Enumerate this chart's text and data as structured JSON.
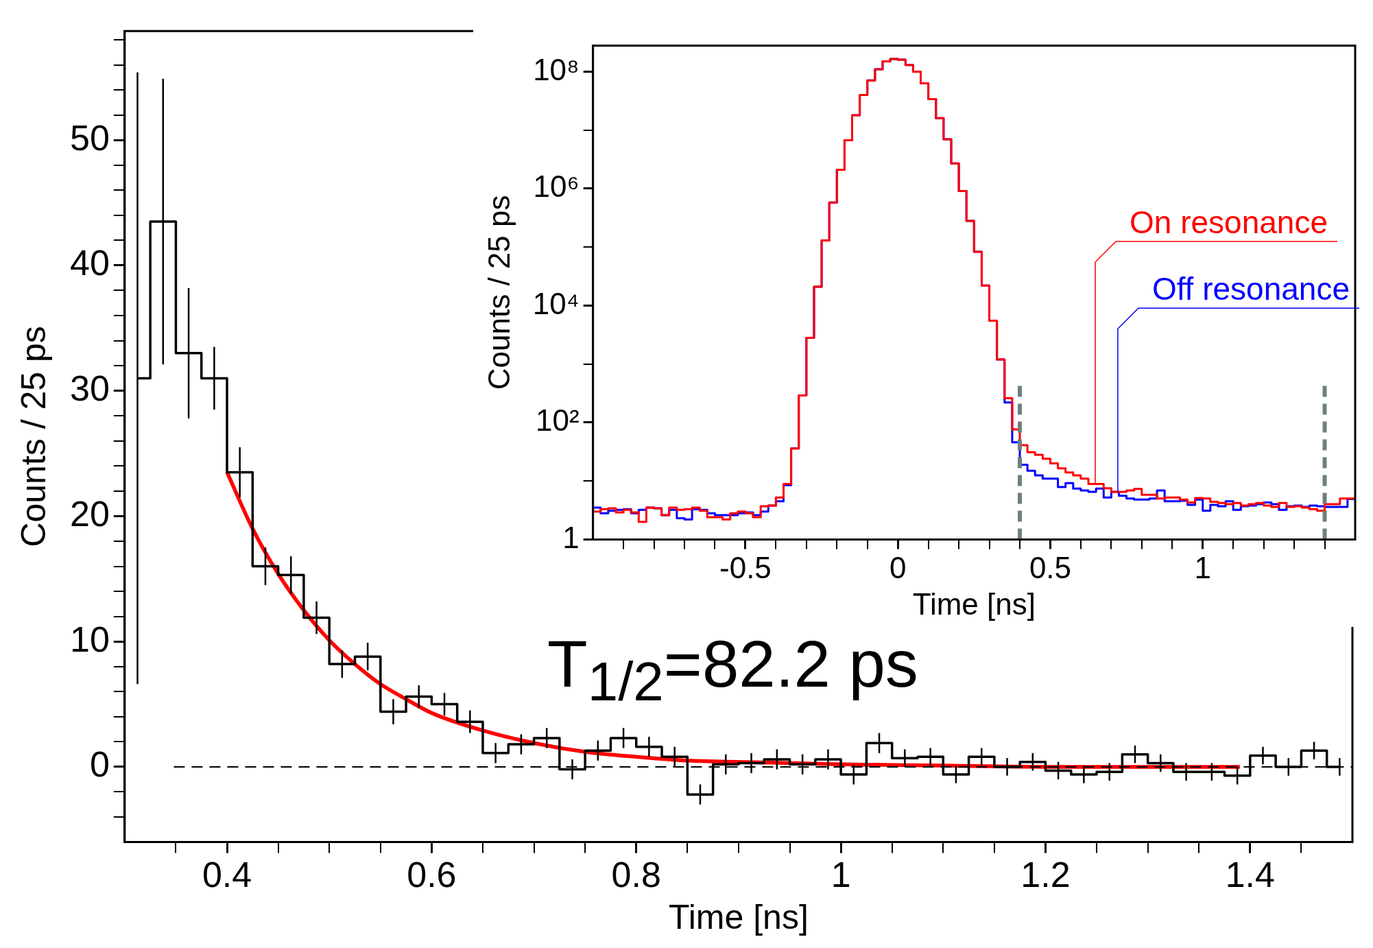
{
  "chart_data": [
    {
      "type": "step",
      "xlabel": "Time [ns]",
      "ylabel": "Counts / 25 ps",
      "marker": "none",
      "xlim": [
        0.3,
        1.5
      ],
      "ylim": [
        -6,
        58.7
      ],
      "xticks": [
        {
          "value": 0.35,
          "label": null
        },
        0.4,
        {
          "value": 0.45,
          "label": null
        },
        {
          "value": 0.5,
          "label": null
        },
        {
          "value": 0.55,
          "label": null
        },
        0.6,
        {
          "value": 0.65,
          "label": null
        },
        {
          "value": 0.7,
          "label": null
        },
        {
          "value": 0.75,
          "label": null
        },
        0.8,
        {
          "value": 0.85,
          "label": null
        },
        {
          "value": 0.9,
          "label": null
        },
        {
          "value": 0.95,
          "label": null
        },
        1,
        {
          "value": 1.05,
          "label": null
        },
        {
          "value": 1.1,
          "label": null
        },
        {
          "value": 1.15,
          "label": null
        },
        1.2,
        {
          "value": 1.25,
          "label": null
        },
        {
          "value": 1.3,
          "label": null
        },
        {
          "value": 1.35,
          "label": null
        },
        1.4,
        {
          "value": 1.45,
          "label": null
        }
      ],
      "yticks": [
        {
          "value": -4,
          "label": null
        },
        {
          "value": -2,
          "label": null
        },
        0,
        {
          "value": 2,
          "label": null
        },
        {
          "value": 4,
          "label": null
        },
        {
          "value": 6,
          "label": null
        },
        {
          "value": 8,
          "label": null
        },
        10,
        {
          "value": 12,
          "label": null
        },
        {
          "value": 14,
          "label": null
        },
        {
          "value": 16,
          "label": null
        },
        {
          "value": 18,
          "label": null
        },
        20,
        {
          "value": 22,
          "label": null
        },
        {
          "value": 24,
          "label": null
        },
        {
          "value": 26,
          "label": null
        },
        {
          "value": 28,
          "label": null
        },
        30,
        {
          "value": 32,
          "label": null
        },
        {
          "value": 34,
          "label": null
        },
        {
          "value": 36,
          "label": null
        },
        {
          "value": 38,
          "label": null
        },
        40,
        {
          "value": 42,
          "label": null
        },
        {
          "value": 44,
          "label": null
        },
        {
          "value": 46,
          "label": null
        },
        {
          "value": 48,
          "label": null
        },
        50,
        {
          "value": 52,
          "label": null
        },
        {
          "value": 54,
          "label": null
        },
        {
          "value": 56,
          "label": null
        },
        {
          "value": 58,
          "label": null
        }
      ],
      "x": [
        0.3125,
        0.3375,
        0.3625,
        0.3875,
        0.4125,
        0.4375,
        0.4625,
        0.4875,
        0.5125,
        0.5375,
        0.5625,
        0.5875,
        0.6125,
        0.6375,
        0.6625,
        0.6875,
        0.7125,
        0.7375,
        0.7625,
        0.7875,
        0.8125,
        0.8375,
        0.8625,
        0.8875,
        0.9125,
        0.9375,
        0.9625,
        0.9875,
        1.0125,
        1.0375,
        1.0625,
        1.0875,
        1.1125,
        1.1375,
        1.1625,
        1.1875,
        1.2125,
        1.2375,
        1.2625,
        1.2875,
        1.3125,
        1.3375,
        1.3625,
        1.3875,
        1.4125,
        1.4375,
        1.4625,
        1.4875
      ],
      "series": [
        {
          "color": "#000000",
          "values": [
            31,
            43.5,
            33,
            31,
            23.5,
            16,
            15.3,
            11.9,
            8.2,
            8.8,
            4.4,
            5.6,
            5.0,
            3.6,
            1.1,
            1.8,
            2.3,
            -0.2,
            1.3,
            2.3,
            1.6,
            0.8,
            -2.2,
            0.2,
            0.3,
            0.6,
            0.2,
            0.6,
            -0.6,
            1.9,
            0.7,
            0.8,
            -0.6,
            0.8,
            0.0,
            0.4,
            -0.3,
            -0.6,
            -0.4,
            1.0,
            0.3,
            -0.4,
            -0.4,
            -0.7,
            0.9,
            0.0,
            1.3,
            0.0
          ],
          "errors": [
            24.4,
            11.4,
            5.2,
            2.5,
            2,
            1.5,
            1.5,
            1.3,
            1.1,
            1.1,
            1,
            0.9,
            0.9,
            0.9,
            0.8,
            0.8,
            0.8,
            0.8,
            0.8,
            0.8,
            0.8,
            0.8,
            0.8,
            0.8,
            0.8,
            0.8,
            0.8,
            0.8,
            0.8,
            0.8,
            0.7,
            0.7,
            0.7,
            0.7,
            0.7,
            0.7,
            0.7,
            0.7,
            0.7,
            0.7,
            0.7,
            0.7,
            0.7,
            0.7,
            0.7,
            0.7,
            0.7,
            0.7
          ]
        },
        {
          "type": "line",
          "color": "#ff0000",
          "x": [
            0.4,
            0.425,
            0.45,
            0.475,
            0.5,
            0.525,
            0.55,
            0.575,
            0.6,
            0.65,
            0.7,
            0.75,
            0.8,
            0.85,
            0.9,
            1.0,
            1.1,
            1.2,
            1.3,
            1.39
          ],
          "values": [
            23.5,
            19.0,
            15.4,
            12.5,
            10.1,
            8.2,
            6.6,
            5.4,
            4.3,
            2.9,
            1.9,
            1.2,
            0.8,
            0.5,
            0.4,
            0.2,
            0.1,
            0.0,
            0.0,
            0.0
          ]
        }
      ],
      "ref_lines": [
        {
          "axis": "y",
          "value": 0,
          "color": "#000000",
          "line_style": "dashed"
        }
      ],
      "annotations": [
        "T$_{1/2}$=82.2 ps"
      ]
    },
    {
      "type": "histogram",
      "xlabel": "Time [ns]",
      "ylabel": "Counts / 25 ps",
      "marker": "none",
      "log": true,
      "xlim": [
        -1,
        1.5
      ],
      "ylim": [
        1,
        280000000
      ],
      "xticks": [
        {
          "value": -0.9,
          "label": null
        },
        {
          "value": -0.8,
          "label": null
        },
        {
          "value": -0.7,
          "label": null
        },
        {
          "value": -0.6,
          "label": null
        },
        -0.5,
        {
          "value": -0.4,
          "label": null
        },
        {
          "value": -0.3,
          "label": null
        },
        {
          "value": -0.2,
          "label": null
        },
        {
          "value": -0.1,
          "label": null
        },
        0,
        {
          "value": 0.1,
          "label": null
        },
        {
          "value": 0.2,
          "label": null
        },
        {
          "value": 0.3,
          "label": null
        },
        {
          "value": 0.4,
          "label": null
        },
        0.5,
        {
          "value": 0.6,
          "label": null
        },
        {
          "value": 0.7,
          "label": null
        },
        {
          "value": 0.8,
          "label": null
        },
        {
          "value": 0.9,
          "label": null
        },
        1,
        {
          "value": 1.1,
          "label": null
        },
        {
          "value": 1.2,
          "label": null
        },
        {
          "value": 1.3,
          "label": null
        },
        {
          "value": 1.4,
          "label": null
        }
      ],
      "yticks": [
        1,
        {
          "value": 10,
          "label": null
        },
        {
          "value": 100,
          "label": "10²"
        },
        {
          "value": 1000,
          "label": null
        },
        {
          "value": 10000,
          "label": "10⁴"
        },
        {
          "value": 100000,
          "label": null
        },
        {
          "value": 1000000,
          "label": "10⁶"
        },
        {
          "value": 10000000,
          "label": null
        },
        {
          "value": 100000000,
          "label": "10⁸"
        }
      ],
      "bins": [
        -1,
        -0.975,
        -0.95,
        -0.925,
        -0.9,
        -0.875,
        -0.85,
        -0.825,
        -0.8,
        -0.775,
        -0.75,
        -0.725,
        -0.7,
        -0.675,
        -0.65,
        -0.625,
        -0.6,
        -0.575,
        -0.55,
        -0.525,
        -0.5,
        -0.475,
        -0.45,
        -0.425,
        -0.4,
        -0.375,
        -0.35,
        -0.325,
        -0.3,
        -0.275,
        -0.25,
        -0.225,
        -0.2,
        -0.175,
        -0.15,
        -0.125,
        -0.1,
        -0.075,
        -0.05,
        -0.025,
        0,
        0.025,
        0.05,
        0.075,
        0.1,
        0.125,
        0.15,
        0.175,
        0.2,
        0.225,
        0.25,
        0.275,
        0.3,
        0.325,
        0.35,
        0.375,
        0.4,
        0.425,
        0.45,
        0.475,
        0.5,
        0.525,
        0.55,
        0.575,
        0.6,
        0.625,
        0.65,
        0.675,
        0.7,
        0.725,
        0.75,
        0.775,
        0.8,
        0.825,
        0.85,
        0.875,
        0.9,
        0.925,
        0.95,
        0.975,
        1,
        1.025,
        1.05,
        1.075,
        1.1,
        1.125,
        1.15,
        1.175,
        1.2,
        1.225,
        1.25,
        1.275,
        1.3,
        1.325,
        1.35,
        1.375,
        1.4,
        1.425,
        1.45,
        1.475,
        1.5
      ],
      "series": [
        {
          "name": "On resonance",
          "color": "#ff0000",
          "values": [
            3.0,
            3.3,
            3.4,
            2.9,
            3.2,
            2.9,
            2.0,
            3.5,
            3.4,
            2.6,
            3.5,
            3.2,
            3.3,
            3.5,
            3.1,
            2.4,
            2.4,
            2.2,
            2.8,
            3.0,
            2.8,
            2.4,
            3.7,
            3.8,
            5.2,
            8.9,
            36,
            290,
            2800,
            21000,
            130000,
            580000,
            2100000,
            6700000,
            18000000,
            40000000,
            71000000,
            110000000,
            150000000,
            165000000,
            160000000,
            130000000,
            100000000,
            63000000,
            34000000,
            16000000,
            7000000,
            2700000,
            910000,
            280000,
            83000,
            22000,
            5500,
            1200,
            260,
            76,
            41,
            31,
            28,
            24,
            20,
            16.5,
            14,
            12.5,
            11,
            8.9,
            8.9,
            7.5,
            6.5,
            6.5,
            6.9,
            7.3,
            5.8,
            5.8,
            5.0,
            5.2,
            5.2,
            4.8,
            4.3,
            5.1,
            5.0,
            4.4,
            4.2,
            4.0,
            4.2,
            3.8,
            4.0,
            4.2,
            3.8,
            3.6,
            4.2,
            3.6,
            3.7,
            3.5,
            3.3,
            3.1,
            4.0,
            4.0,
            5.0,
            5.0
          ]
        },
        {
          "name": "Off resonance",
          "color": "#0000ff",
          "values": [
            3.5,
            2.8,
            3.1,
            3.2,
            3.3,
            2.8,
            3.2,
            3.5,
            3.4,
            2.6,
            3.2,
            2.3,
            2.2,
            3.3,
            3.2,
            2.8,
            2.6,
            2.6,
            2.6,
            2.8,
            2.9,
            2.6,
            3.0,
            3.8,
            4.5,
            8.5,
            36,
            290,
            2800,
            21000,
            130000,
            580000,
            2100000,
            6700000,
            18000000,
            40000000,
            71000000,
            110000000,
            150000000,
            165000000,
            160000000,
            130000000,
            100000000,
            63000000,
            34000000,
            16000000,
            7000000,
            2700000,
            910000,
            280000,
            83000,
            22000,
            5500,
            1200,
            220,
            46,
            19,
            15,
            12.5,
            11,
            11,
            7.9,
            9.2,
            7.4,
            6.9,
            6.5,
            7.4,
            5.2,
            6.5,
            5.6,
            5.0,
            4.8,
            4.8,
            5.0,
            6.9,
            4.5,
            4.5,
            4.6,
            3.9,
            4.8,
            3.1,
            3.9,
            3.7,
            4.5,
            3.2,
            3.7,
            3.8,
            4.0,
            4.3,
            4.0,
            3.2,
            3.7,
            3.8,
            3.6,
            3.8,
            3.7,
            3.6,
            3.6,
            3.6,
            4.9
          ]
        }
      ],
      "ref_lines": [
        {
          "axis": "x",
          "value": 0.4,
          "color": "#6f7f80",
          "line_style": "dashed"
        },
        {
          "axis": "x",
          "value": 1.4,
          "color": "#6f7f80",
          "line_style": "dashed"
        }
      ]
    }
  ]
}
